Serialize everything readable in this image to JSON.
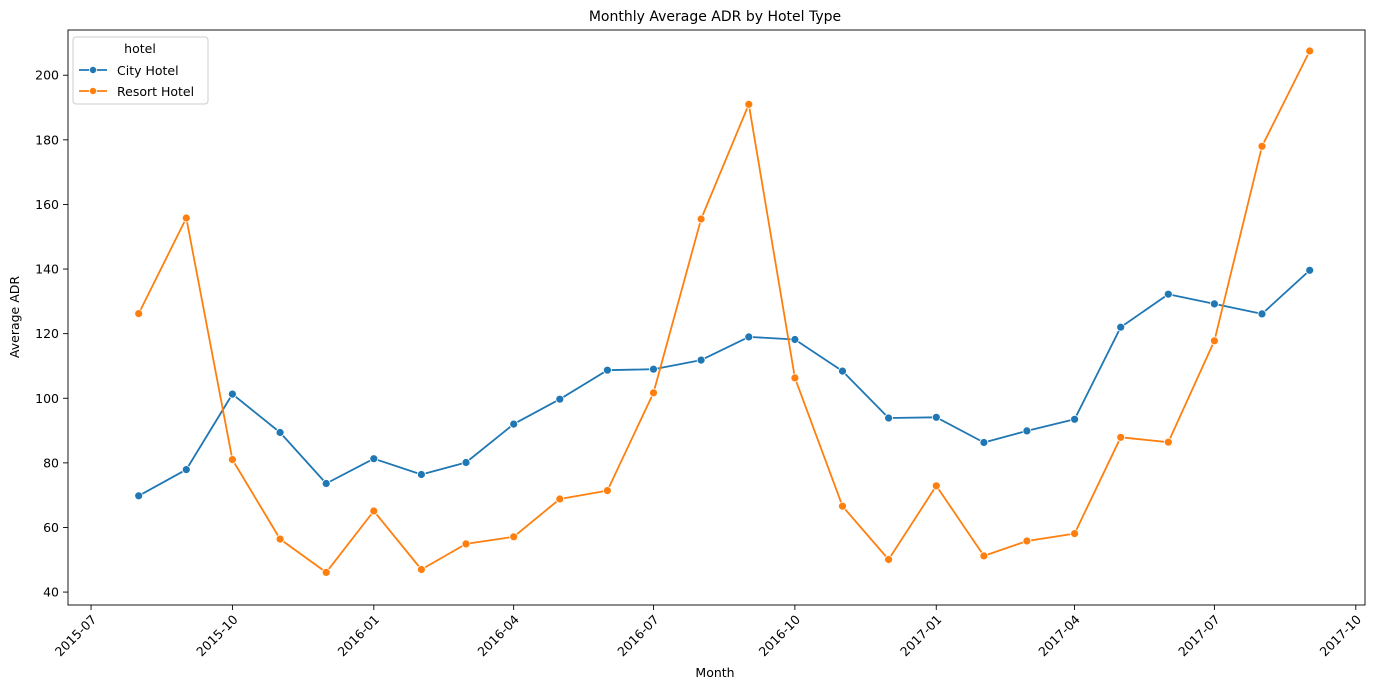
{
  "chart_data": {
    "type": "line",
    "title": "Monthly Average ADR by Hotel Type",
    "xlabel": "Month",
    "ylabel": "Average ADR",
    "xlim": [
      "2015-07-01",
      "2017-10-01"
    ],
    "ylim": [
      40,
      210
    ],
    "x_ticks": [
      "2015-07",
      "2015-10",
      "2016-01",
      "2016-04",
      "2016-07",
      "2016-10",
      "2017-01",
      "2017-04",
      "2017-07",
      "2017-10"
    ],
    "y_ticks": [
      40,
      60,
      80,
      100,
      120,
      140,
      160,
      180,
      200
    ],
    "grid": false,
    "legend": {
      "title": "hotel",
      "position": "top-left"
    },
    "x": [
      "2015-08",
      "2015-09",
      "2015-10",
      "2015-11",
      "2015-12",
      "2016-01",
      "2016-02",
      "2016-03",
      "2016-04",
      "2016-05",
      "2016-06",
      "2016-07",
      "2016-08",
      "2016-09",
      "2016-10",
      "2016-11",
      "2016-12",
      "2017-01",
      "2017-02",
      "2017-03",
      "2017-04",
      "2017-05",
      "2017-06",
      "2017-07",
      "2017-08",
      "2017-09"
    ],
    "series": [
      {
        "name": "City Hotel",
        "color": "#1f77b4",
        "values": [
          69.8,
          77.9,
          101.3,
          89.4,
          73.6,
          81.3,
          76.4,
          80.1,
          92.0,
          99.7,
          108.7,
          109.0,
          111.8,
          119.0,
          118.2,
          108.4,
          93.9,
          94.1,
          86.3,
          89.9,
          93.5,
          122.0,
          132.2,
          129.2,
          126.1,
          139.6
        ]
      },
      {
        "name": "Resort Hotel",
        "color": "#ff7f0e",
        "values": [
          126.2,
          155.8,
          81.0,
          56.4,
          46.1,
          65.1,
          47.0,
          54.9,
          57.1,
          68.8,
          71.4,
          101.7,
          155.5,
          191.0,
          106.3,
          66.6,
          50.1,
          72.9,
          51.2,
          55.8,
          58.1,
          87.9,
          86.4,
          117.8,
          178.0,
          207.5
        ]
      }
    ]
  }
}
